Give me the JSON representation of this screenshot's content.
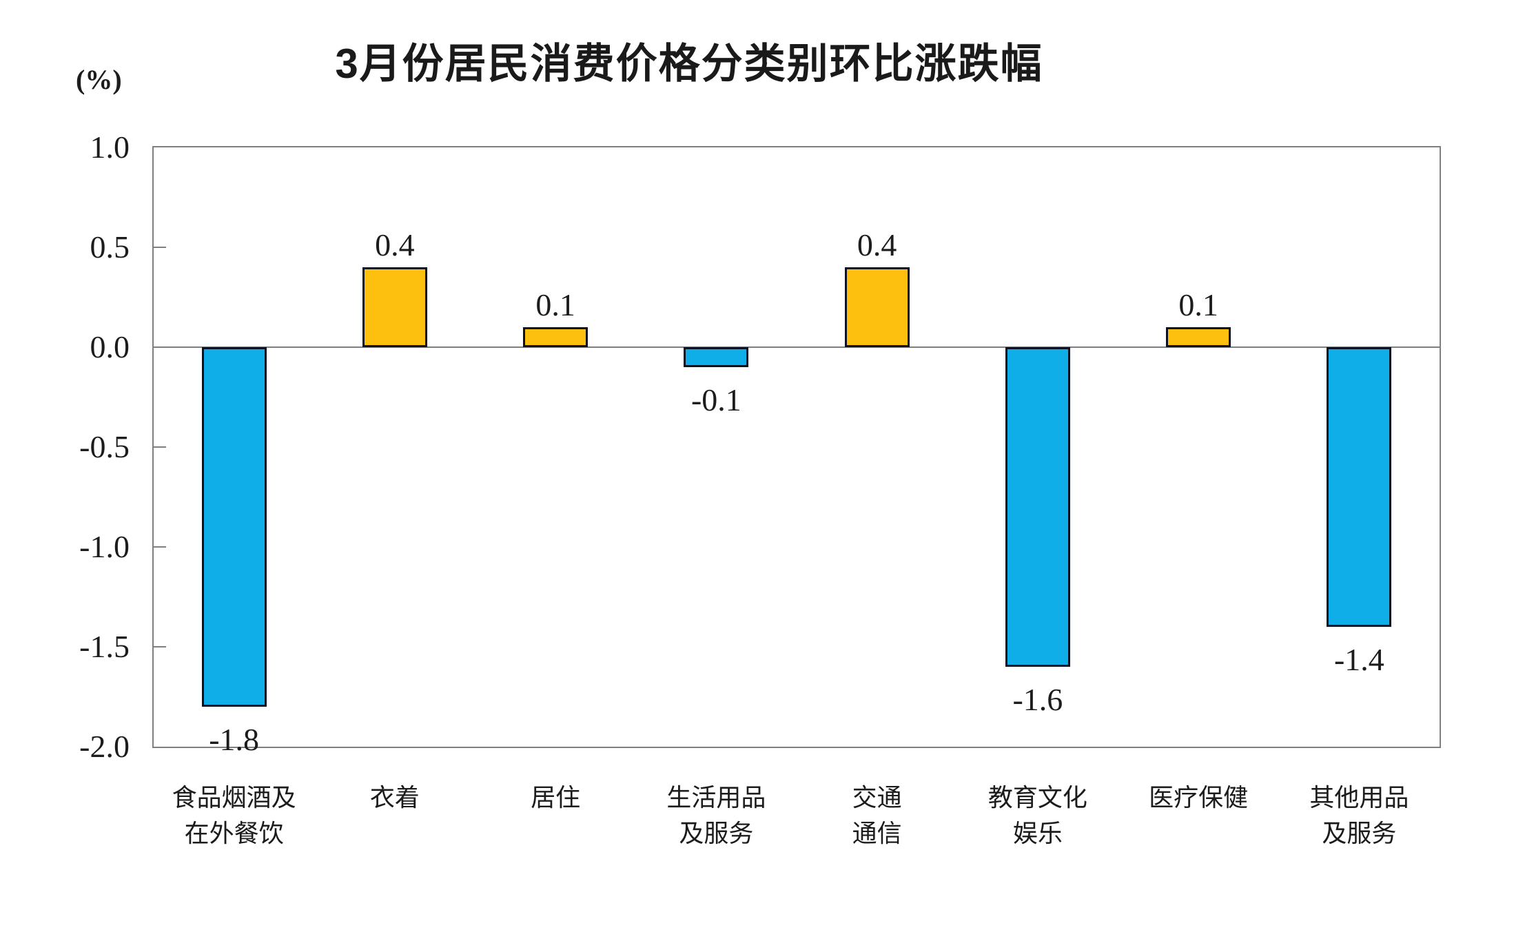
{
  "header": {
    "title": "3月份居民消费价格分类别环比涨跌幅",
    "unit_label": "(%)"
  },
  "chart_data": {
    "type": "bar",
    "title": "3月份居民消费价格分类别环比涨跌幅",
    "xlabel": "",
    "ylabel": "(%)",
    "categories": [
      "食品烟酒及\n在外餐饮",
      "衣着",
      "居住",
      "生活用品\n及服务",
      "交通\n通信",
      "教育文化\n娱乐",
      "医疗保健",
      "其他用品\n及服务"
    ],
    "values": [
      -1.8,
      0.4,
      0.1,
      -0.1,
      0.4,
      -1.6,
      0.1,
      -1.4
    ],
    "value_labels": [
      "-1.8",
      "0.4",
      "0.1",
      "-0.1",
      "0.4",
      "-1.6",
      "0.1",
      "-1.4"
    ],
    "ylim": [
      -2.0,
      1.0
    ],
    "yticks": [
      "1.0",
      "0.5",
      "0.0",
      "-0.5",
      "-1.0",
      "-1.5",
      "-2.0"
    ],
    "grid": false,
    "legend_position": "none",
    "colors": {
      "positive_bar": "#FDC00F",
      "negative_bar": "#0FAEE8",
      "bar_border": "#0c1222",
      "axis": "#7f7f7f",
      "text": "#1c1c1c"
    }
  }
}
